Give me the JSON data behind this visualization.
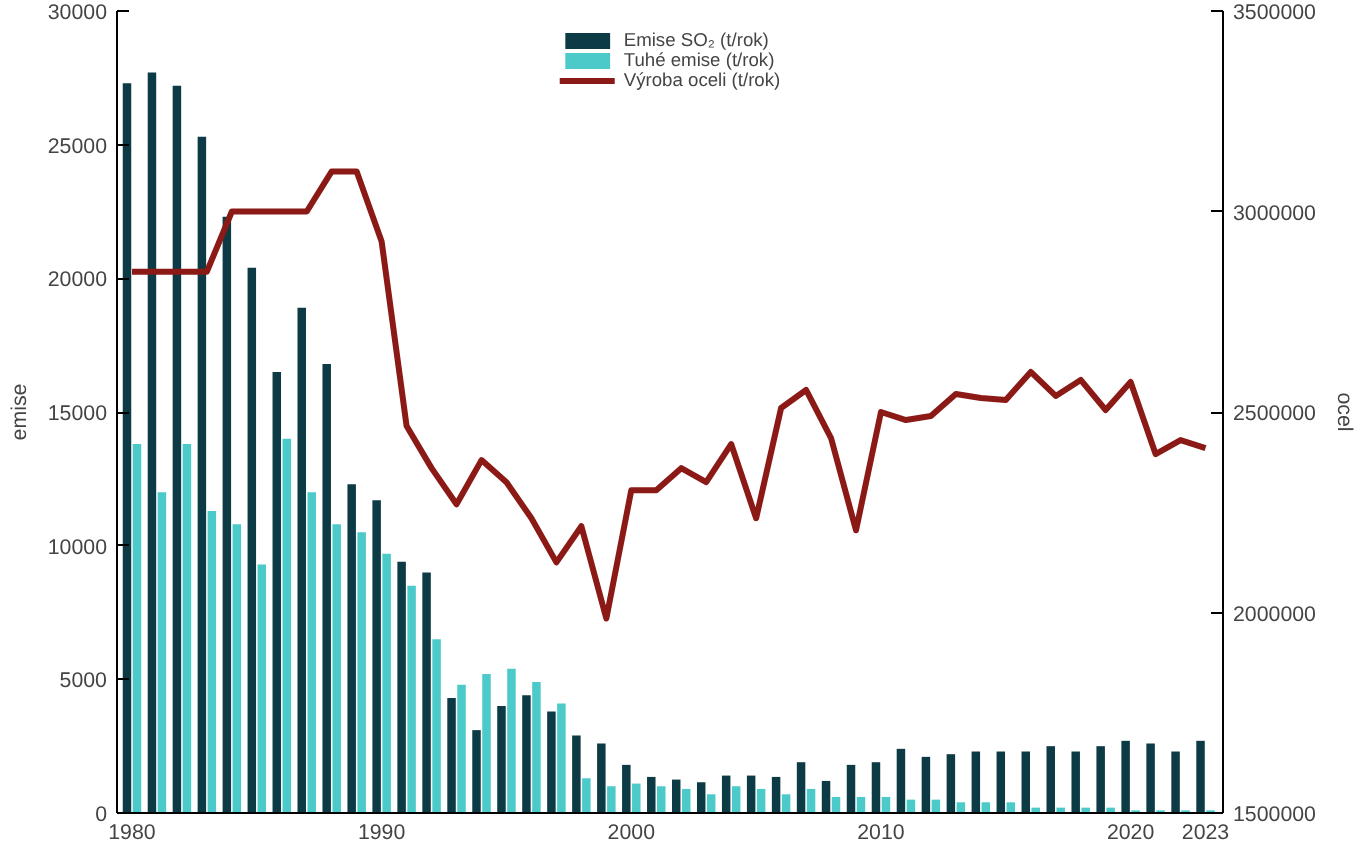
{
  "chart_data": {
    "type": "bar",
    "ylabel": "emise",
    "y2label": "ocel",
    "x": [
      1980,
      1981,
      1982,
      1983,
      1984,
      1985,
      1986,
      1987,
      1988,
      1989,
      1990,
      1991,
      1992,
      1993,
      1994,
      1995,
      1996,
      1997,
      1998,
      1999,
      2000,
      2001,
      2002,
      2003,
      2004,
      2005,
      2006,
      2007,
      2008,
      2009,
      2010,
      2011,
      2012,
      2013,
      2014,
      2015,
      2016,
      2017,
      2018,
      2019,
      2020,
      2021,
      2022,
      2023
    ],
    "series": [
      {
        "name": "Emise SO₂ (t/rok)",
        "color": "#0d3b45",
        "values": [
          27300,
          27700,
          27200,
          25300,
          22300,
          20400,
          16500,
          18900,
          16800,
          12300,
          11700,
          9400,
          9000,
          4300,
          3100,
          4000,
          4400,
          3800,
          2900,
          2600,
          1800,
          1350,
          1250,
          1150,
          1400,
          1400,
          1350,
          1900,
          1200,
          1800,
          1900,
          2400,
          2100,
          2200,
          2300,
          2300,
          2300,
          2500,
          2300,
          2500,
          2700,
          2600,
          2300,
          2700
        ]
      },
      {
        "name": "Tuhé emise (t/rok)",
        "color": "#4cc9c9",
        "values": [
          13800,
          12000,
          13800,
          11300,
          10800,
          9300,
          14000,
          12000,
          10800,
          10500,
          9700,
          8500,
          6500,
          4800,
          5200,
          5400,
          4900,
          4100,
          1300,
          1000,
          1100,
          1000,
          900,
          700,
          1000,
          900,
          700,
          900,
          600,
          600,
          600,
          500,
          500,
          400,
          400,
          400,
          200,
          200,
          200,
          200,
          100,
          100,
          100,
          100
        ]
      },
      {
        "name": "Výroba oceli (t/rok)",
        "color": "#8b1a16",
        "type": "line",
        "axis": "y2",
        "values": [
          2850000,
          2850000,
          2850000,
          2850000,
          3000000,
          3000000,
          3000000,
          3000000,
          3100000,
          3100000,
          2925000,
          2465000,
          2360000,
          2270000,
          2380000,
          2325000,
          2235000,
          2125000,
          2215000,
          1985000,
          2305000,
          2305000,
          2360000,
          2325000,
          2420000,
          2235000,
          2510000,
          2555000,
          2435000,
          2205000,
          2500000,
          2480000,
          2490000,
          2545000,
          2535000,
          2530000,
          2600000,
          2540000,
          2580000,
          2505000,
          2575000,
          2395000,
          2430000,
          2410000
        ]
      }
    ],
    "xlim": [
      1979.4,
      2023.7
    ],
    "xticks": [
      1980,
      1990,
      2000,
      2010,
      2020,
      2023
    ],
    "ylim": [
      0,
      30000
    ],
    "yticks": [
      0,
      5000,
      10000,
      15000,
      20000,
      25000,
      30000
    ],
    "y2lim": [
      1500000,
      3500000
    ],
    "y2ticks": [
      1500000,
      2000000,
      2500000,
      3000000,
      3500000
    ],
    "grid": false,
    "legend": "top",
    "line_style": "solid",
    "marker": "none"
  }
}
